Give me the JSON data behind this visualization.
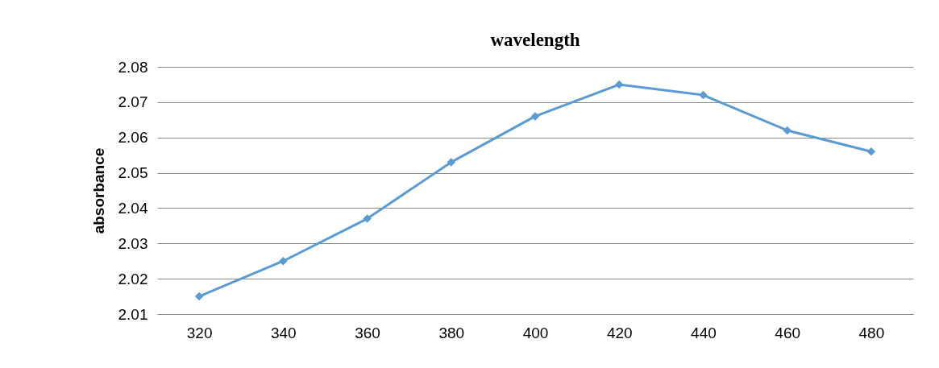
{
  "chart_data": {
    "type": "line",
    "title": "wavelength",
    "ylabel": "absorbance",
    "categories": [
      "320",
      "340",
      "360",
      "380",
      "400",
      "420",
      "440",
      "460",
      "480"
    ],
    "series": [
      {
        "color": "#5b9bd5",
        "values": [
          2.015,
          2.025,
          2.037,
          2.053,
          2.066,
          2.075,
          2.072,
          2.062,
          2.056
        ]
      }
    ],
    "ylim": [
      2.01,
      2.08
    ],
    "yticks": [
      2.01,
      2.02,
      2.03,
      2.04,
      2.05,
      2.06,
      2.07,
      2.08
    ],
    "grid": "y",
    "marker": "diamond",
    "line_style": "solid"
  }
}
